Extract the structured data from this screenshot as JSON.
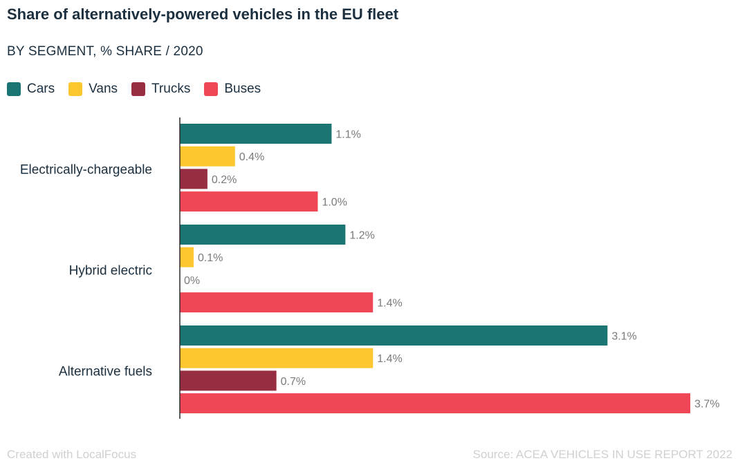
{
  "title": "Share of alternatively-powered vehicles in the EU fleet",
  "subtitle": "BY SEGMENT, % SHARE / 2020",
  "footer": {
    "created_with": "Created with LocalFocus",
    "source": "Source:  ACEA VEHICLES IN USE REPORT 2022"
  },
  "chart_data": {
    "type": "bar",
    "orientation": "horizontal",
    "categories": [
      "Electrically-chargeable",
      "Hybrid electric",
      "Alternative fuels"
    ],
    "series": [
      {
        "name": "Cars",
        "color": "#1b7573",
        "values": [
          1.1,
          1.2,
          3.1
        ],
        "labels": [
          "1.1%",
          "1.2%",
          "3.1%"
        ]
      },
      {
        "name": "Vans",
        "color": "#fcc72f",
        "values": [
          0.4,
          0.1,
          1.4
        ],
        "labels": [
          "0.4%",
          "0.1%",
          "1.4%"
        ]
      },
      {
        "name": "Trucks",
        "color": "#962d41",
        "values": [
          0.2,
          0.0,
          0.7
        ],
        "labels": [
          "0.2%",
          "0%",
          "0.7%"
        ]
      },
      {
        "name": "Buses",
        "color": "#ef4755",
        "values": [
          1.0,
          1.4,
          3.7
        ],
        "labels": [
          "1.0%",
          "1.4%",
          "3.7%"
        ]
      }
    ],
    "xlim": [
      0,
      3.7
    ],
    "grid": false,
    "legend": "top-left"
  }
}
